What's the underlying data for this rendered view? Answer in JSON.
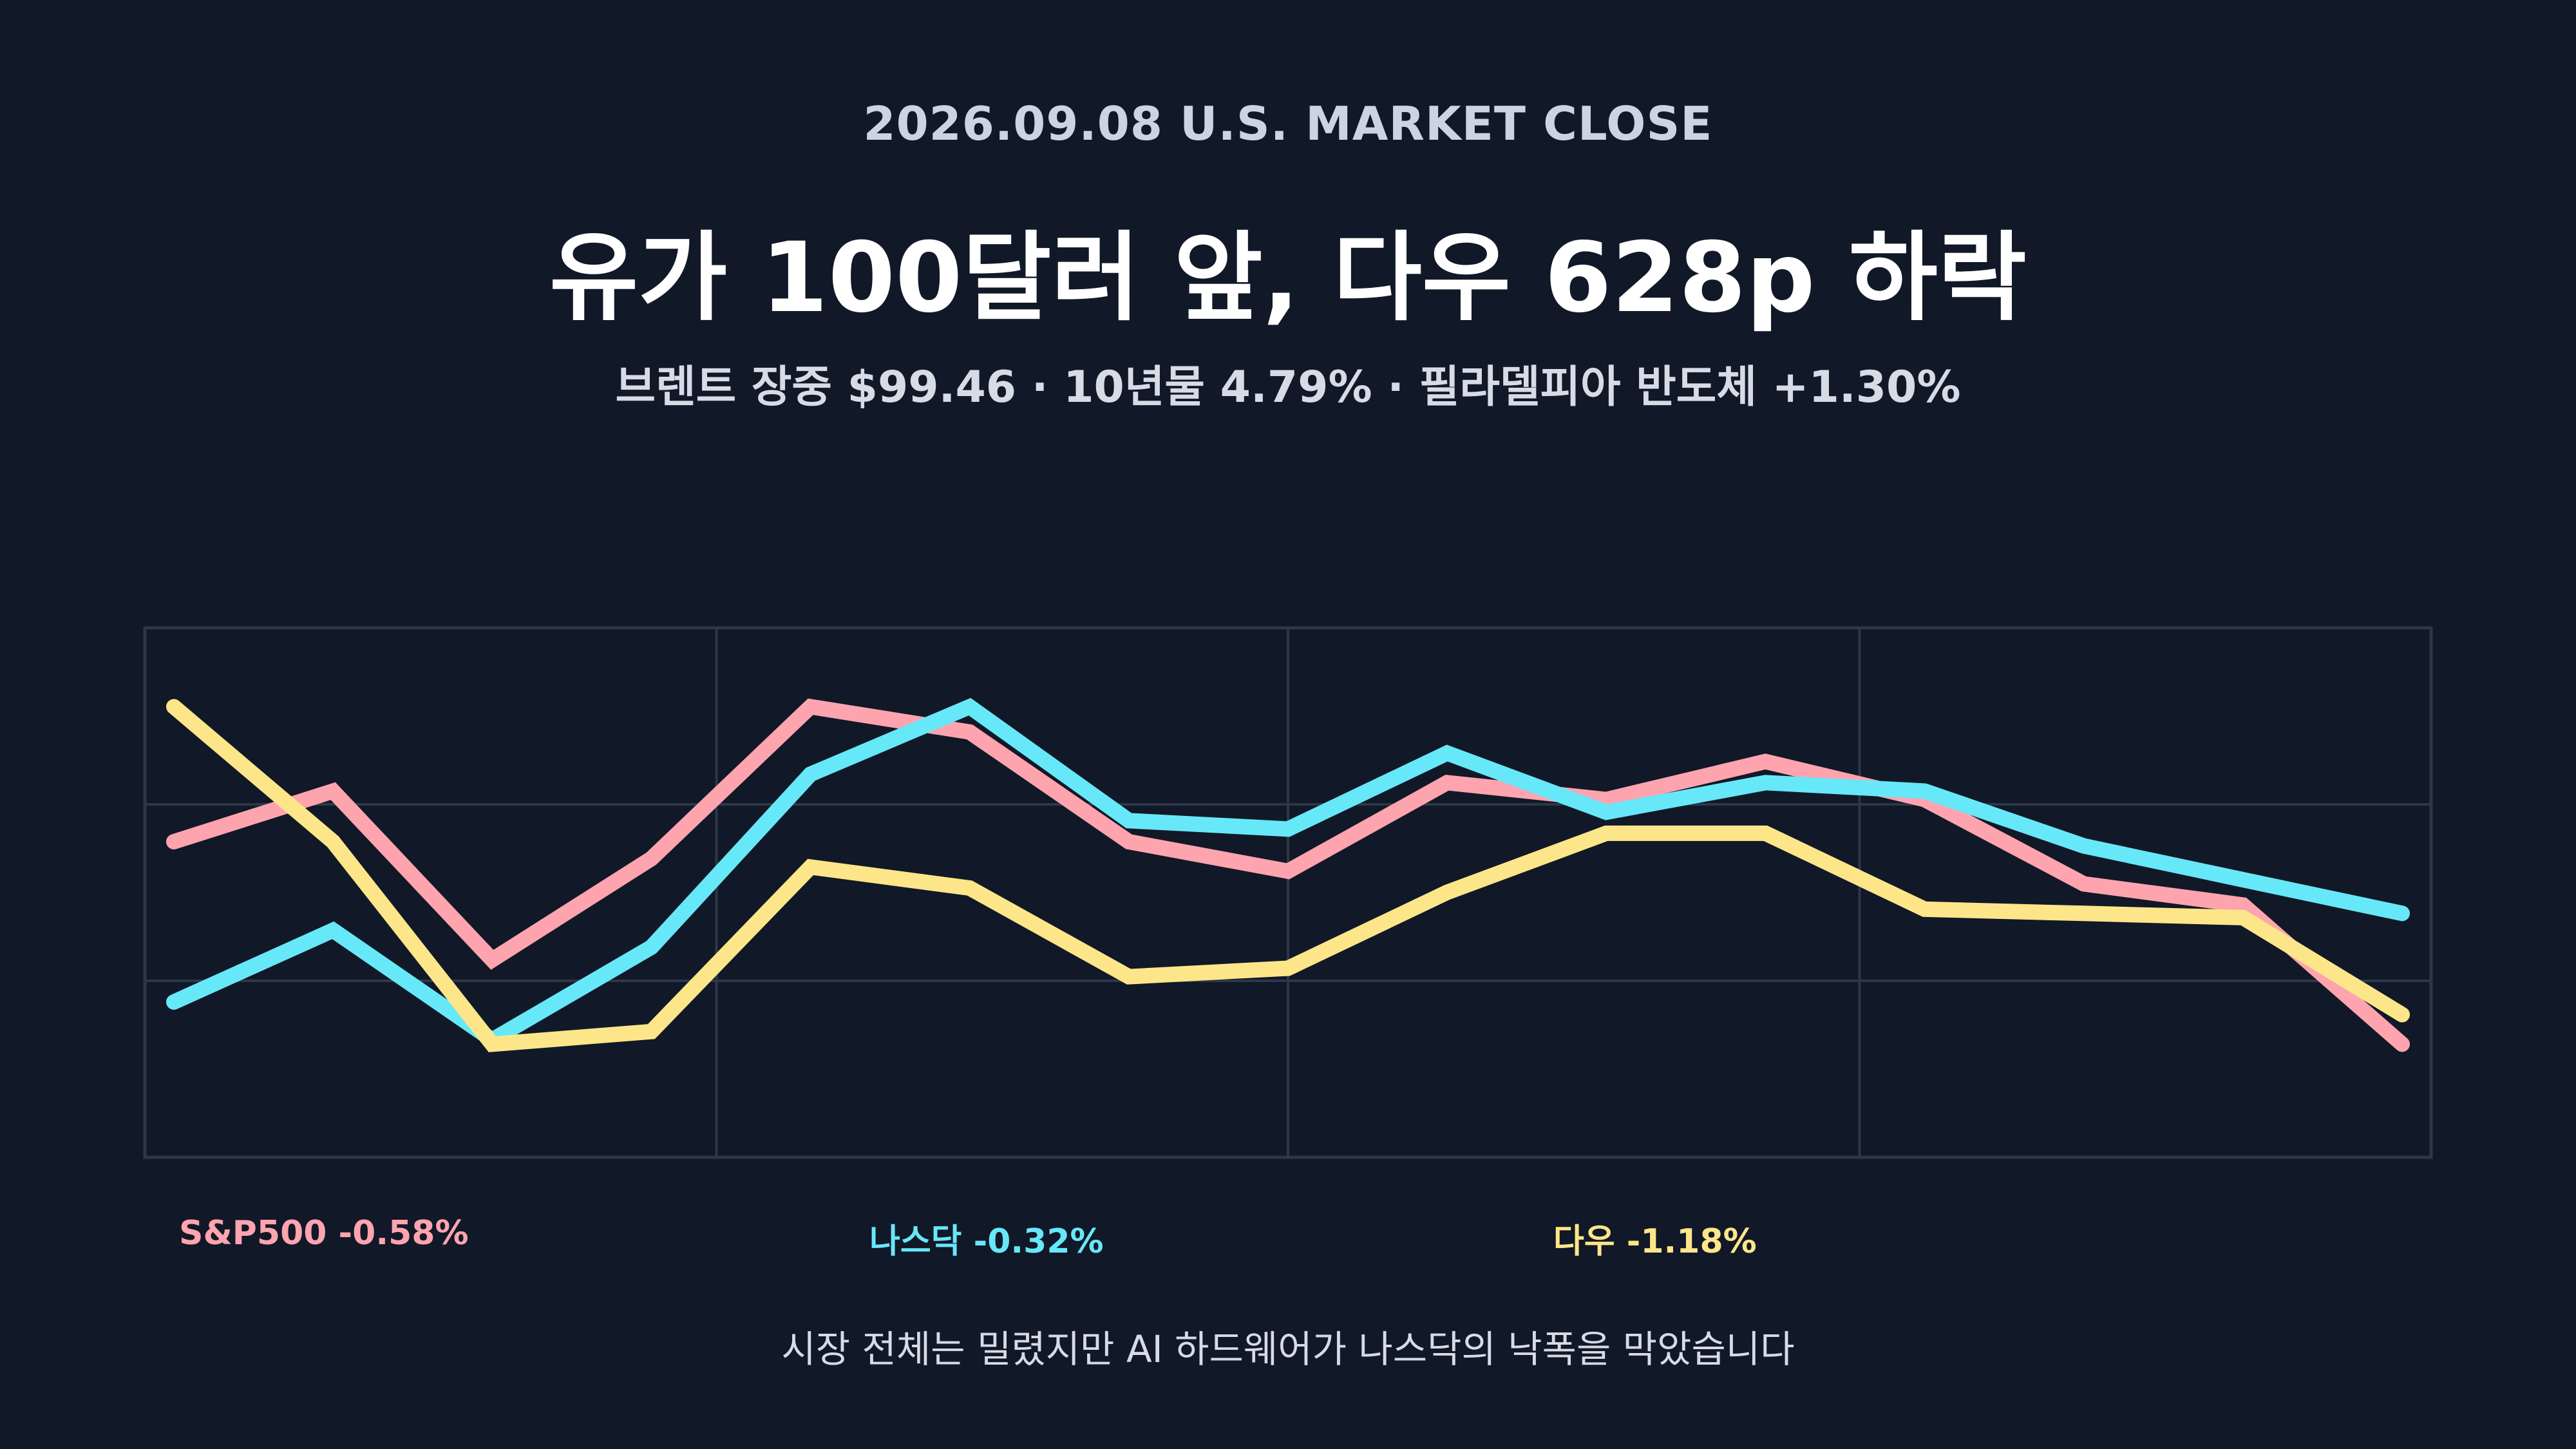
{
  "header": {
    "kicker": "2026.09.08 U.S. MARKET CLOSE",
    "title": "유가 100달러 앞, 다우 628p 하락",
    "subtitle": "브렌트 장중 $99.46 · 10년물 4.79% · 필라델피아 반도체 +1.30%"
  },
  "footnote": "시장 전체는 밀렸지만 AI 하드웨어가 나스닥의 낙폭을 막았습니다",
  "chart_data": {
    "type": "line",
    "title": "",
    "xlabel": "",
    "ylabel": "",
    "x": [
      1,
      2,
      3,
      4,
      5,
      6,
      7,
      8,
      9,
      10,
      11,
      12,
      13,
      14,
      15
    ],
    "ylim": [
      0,
      1
    ],
    "grid": true,
    "legend_position": "bottom",
    "series": [
      {
        "name": "S&P500 -0.58%",
        "color": "#fda4af",
        "values": [
          0.6,
          0.72,
          0.32,
          0.56,
          0.92,
          0.86,
          0.6,
          0.53,
          0.74,
          0.7,
          0.79,
          0.7,
          0.5,
          0.45,
          0.12
        ]
      },
      {
        "name": "나스닥 -0.32%",
        "color": "#67e8f9",
        "values": [
          0.22,
          0.39,
          0.13,
          0.35,
          0.76,
          0.92,
          0.65,
          0.63,
          0.81,
          0.67,
          0.74,
          0.72,
          0.59,
          0.51,
          0.43
        ]
      },
      {
        "name": "다우 -1.18%",
        "color": "#fde68a",
        "values": [
          0.92,
          0.6,
          0.12,
          0.15,
          0.54,
          0.49,
          0.28,
          0.3,
          0.48,
          0.62,
          0.62,
          0.44,
          0.43,
          0.42,
          0.19
        ]
      }
    ]
  }
}
